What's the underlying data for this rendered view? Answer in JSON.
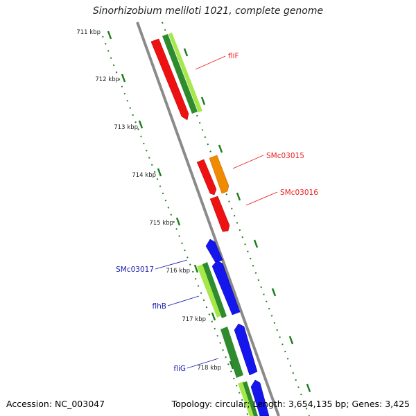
{
  "title": "Sinorhizobium meliloti 1021, complete genome",
  "accession": "Accession: NC_003047",
  "summary": "Topology: circular; Length: 3,654,135 bp; Genes: 3,425",
  "ticks": [
    "711 kbp",
    "712 kbp",
    "713 kbp",
    "714 kbp",
    "715 kbp",
    "716 kbp",
    "717 kbp",
    "718 kbp"
  ],
  "gene_labels": [
    {
      "text": "fliF",
      "strand": "forward",
      "color": "#ee1c1c"
    },
    {
      "text": "SMc03015",
      "strand": "forward",
      "color": "#ee1c1c"
    },
    {
      "text": "SMc03016",
      "strand": "forward",
      "color": "#ee1c1c"
    },
    {
      "text": "SMc03017",
      "strand": "reverse",
      "color": "#1a1ab0"
    },
    {
      "text": "flhB",
      "strand": "reverse",
      "color": "#1a1ab0"
    },
    {
      "text": "fliG",
      "strand": "reverse",
      "color": "#1a1ab0"
    }
  ],
  "colors": {
    "backbone": "#8c8c8c",
    "tick": "#1e7d1e",
    "forward_cds": "#ee1111",
    "reverse_cds": "#1515ee",
    "orange_cds": "#f08a00",
    "gene_dark": "#2e8b2e",
    "gene_light": "#a6e84a"
  }
}
